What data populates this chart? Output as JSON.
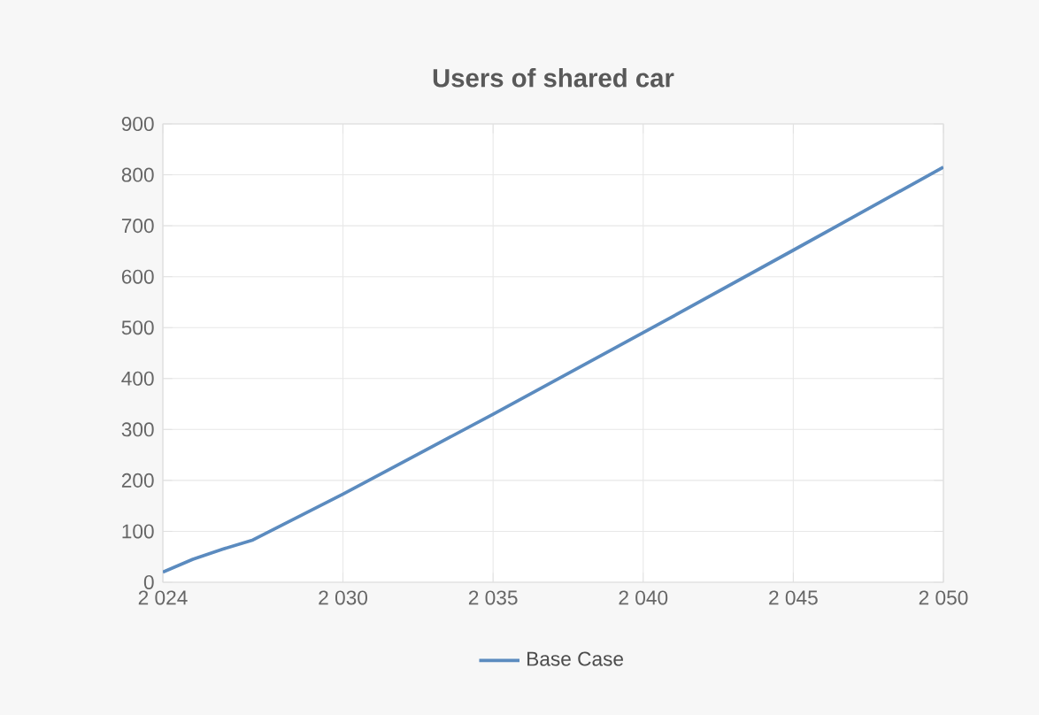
{
  "chart_data": {
    "type": "line",
    "title": "Users of shared car",
    "x": [
      2024,
      2025,
      2026,
      2027,
      2030,
      2035,
      2040,
      2045,
      2050
    ],
    "series": [
      {
        "name": "Base Case",
        "color": "#5b8bbf",
        "values": [
          20,
          45,
          65,
          83,
          173,
          330,
          490,
          652,
          815
        ]
      }
    ],
    "xlim": [
      2024,
      2050
    ],
    "xticks": [
      {
        "value": 2024,
        "label": "2 024"
      },
      {
        "value": 2030,
        "label": "2 030"
      },
      {
        "value": 2035,
        "label": "2 035"
      },
      {
        "value": 2040,
        "label": "2 040"
      },
      {
        "value": 2045,
        "label": "2 045"
      },
      {
        "value": 2050,
        "label": "2 050"
      }
    ],
    "ylim": [
      0,
      900
    ],
    "yticks": [
      0,
      100,
      200,
      300,
      400,
      500,
      600,
      700,
      800,
      900
    ],
    "grid": true,
    "legend": "bottom",
    "marker": "none",
    "line_style": "solid"
  }
}
